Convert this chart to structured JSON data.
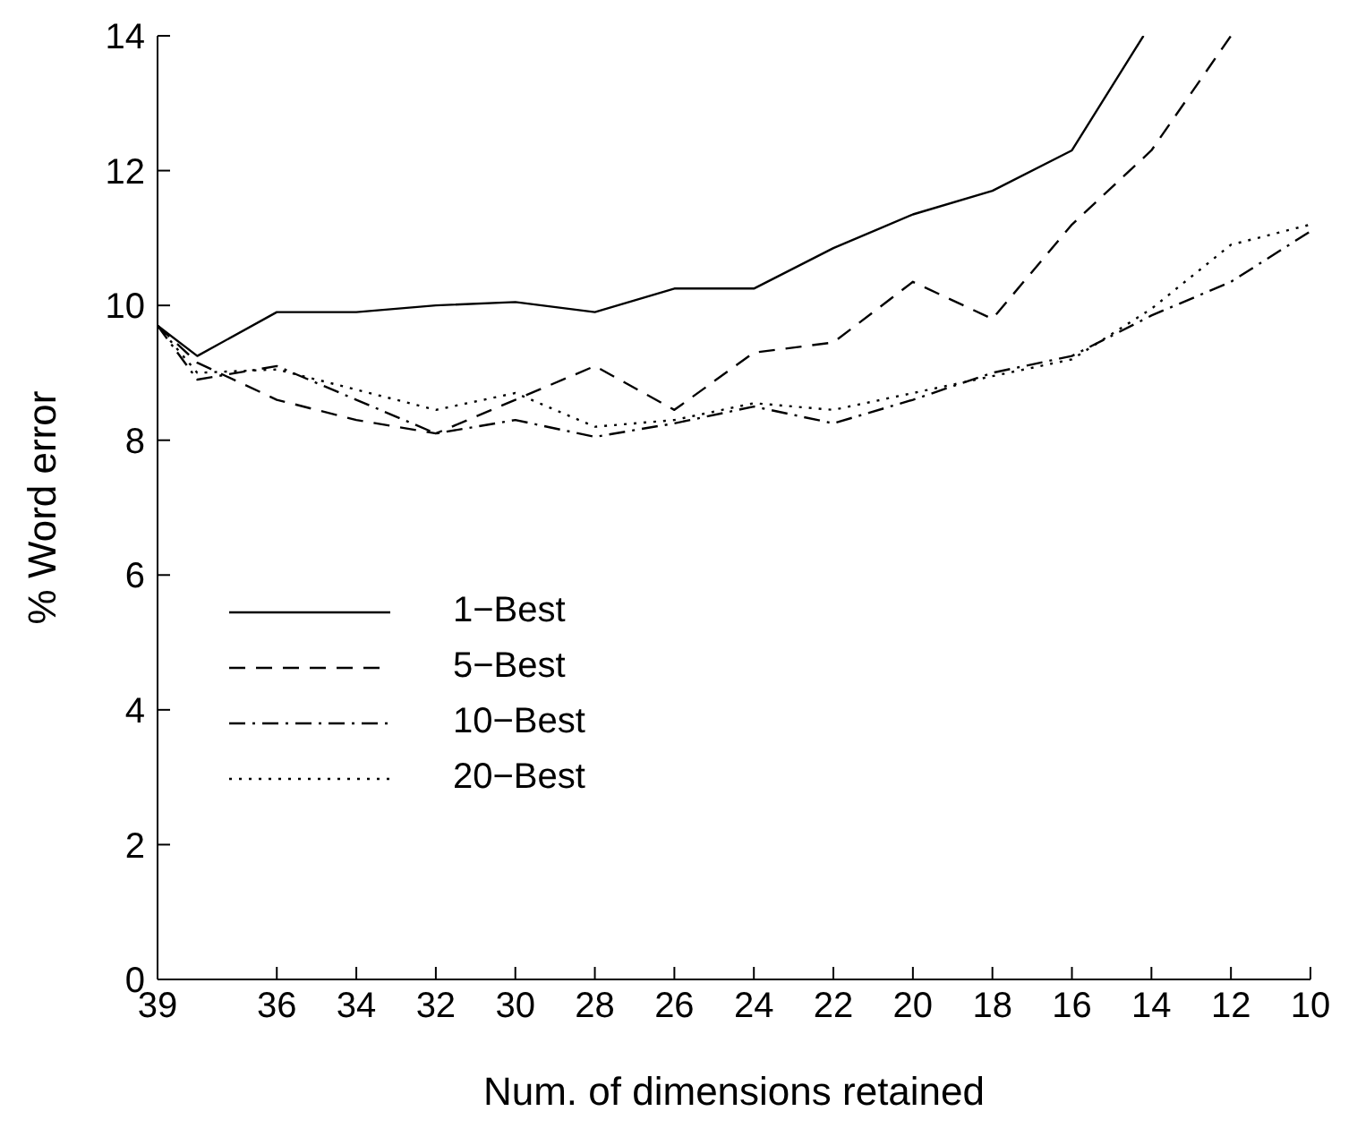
{
  "chart_data": {
    "type": "line",
    "xlabel": "Num. of dimensions retained",
    "ylabel": "% Word error",
    "xlim": [
      39,
      10
    ],
    "xticks": [
      39,
      36,
      34,
      32,
      30,
      28,
      26,
      24,
      22,
      20,
      18,
      16,
      14,
      12,
      10
    ],
    "ylim": [
      0,
      14
    ],
    "yticks": [
      0,
      2,
      4,
      6,
      8,
      10,
      12,
      14
    ],
    "grid": false,
    "legend": "left",
    "marker": "none",
    "series": [
      {
        "name": "1−Best",
        "color": "#000000",
        "line_style": "solid",
        "x": [
          39,
          38,
          36,
          34,
          32,
          30,
          28,
          26,
          24,
          22,
          20,
          18,
          16,
          14.2
        ],
        "values": [
          9.7,
          9.25,
          9.9,
          9.9,
          10.0,
          10.05,
          9.9,
          10.25,
          10.25,
          10.85,
          11.35,
          11.7,
          12.3,
          14
        ]
      },
      {
        "name": "5−Best",
        "color": "#000000",
        "line_style": "dashed",
        "x": [
          39,
          38,
          36,
          34,
          32,
          30,
          28,
          26,
          24,
          22,
          20,
          18,
          16,
          14,
          12
        ],
        "values": [
          9.7,
          9.15,
          8.6,
          8.3,
          8.1,
          8.6,
          9.1,
          8.45,
          9.3,
          9.45,
          10.35,
          9.8,
          11.2,
          12.3,
          14
        ]
      },
      {
        "name": "10−Best",
        "color": "#000000",
        "line_style": "dashdot",
        "x": [
          39,
          38,
          36,
          34,
          32,
          30,
          28,
          26,
          24,
          22,
          20,
          18,
          16,
          14,
          12,
          10
        ],
        "values": [
          9.7,
          8.9,
          9.1,
          8.6,
          8.1,
          8.3,
          8.05,
          8.25,
          8.5,
          8.25,
          8.6,
          9.0,
          9.25,
          9.85,
          10.35,
          11.1
        ]
      },
      {
        "name": "20−Best",
        "color": "#000000",
        "line_style": "dotted",
        "x": [
          39,
          38,
          36,
          34,
          32,
          30,
          28,
          26,
          24,
          22,
          20,
          18,
          16,
          14,
          12,
          10
        ],
        "values": [
          9.7,
          9.0,
          9.05,
          8.75,
          8.45,
          8.7,
          8.2,
          8.3,
          8.55,
          8.45,
          8.7,
          8.95,
          9.2,
          9.95,
          10.9,
          11.2
        ]
      }
    ]
  }
}
